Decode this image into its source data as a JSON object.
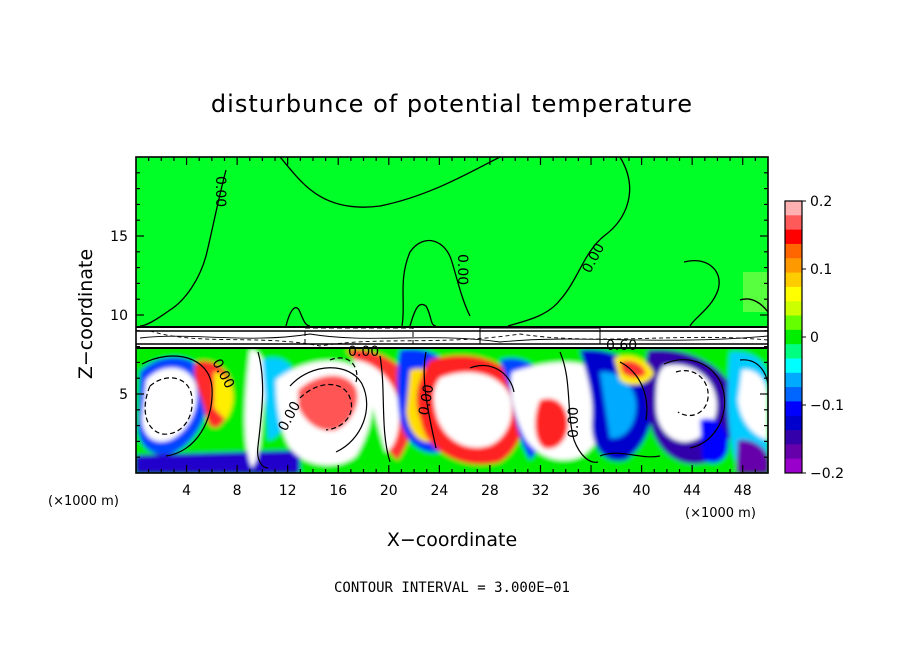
{
  "chart_data": {
    "type": "heatmap",
    "title": "disturbunce of potential temperature",
    "xlabel": "X−coordinate",
    "ylabel": "Z−coordinate",
    "x_unit": "(×1000 m)",
    "x_unit_right": "(×1000 m)",
    "xlim": [
      0,
      50
    ],
    "ylim": [
      0,
      20
    ],
    "x_ticks": [
      4,
      8,
      12,
      16,
      20,
      24,
      28,
      32,
      36,
      40,
      44,
      48
    ],
    "y_ticks": [
      5,
      10,
      15
    ],
    "colorbar": {
      "range": [
        -0.2,
        0.2
      ],
      "ticks": [
        0.2,
        0.1,
        0,
        -0.1,
        -0.2
      ],
      "tick_labels": [
        "0.2",
        "0.1",
        "0",
        "−0.1",
        "−0.2"
      ],
      "colors": [
        "#ffb0b0",
        "#ff5a5a",
        "#ff0000",
        "#ff6600",
        "#ff9900",
        "#ffcc00",
        "#ffff00",
        "#ccff00",
        "#66ff00",
        "#00ee00",
        "#00ff80",
        "#00ffff",
        "#00aaff",
        "#0066ff",
        "#0000ff",
        "#0000cc",
        "#3300aa",
        "#6600aa",
        "#9900cc"
      ]
    },
    "contour_labels": [
      "0.00",
      "0.00",
      "0.00",
      "0.00",
      "0.00",
      "0.00",
      "0.00",
      "0.00",
      "0.60"
    ],
    "grid": false,
    "footer": "CONTOUR INTERVAL = 3.000E−01"
  }
}
